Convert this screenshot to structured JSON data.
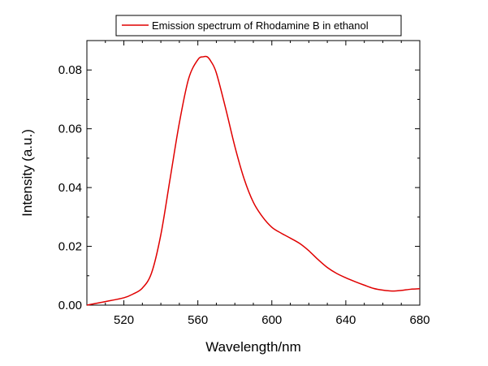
{
  "chart_data": {
    "type": "line",
    "xlabel": "Wavelength/nm",
    "ylabel": "Intensity (a.u.)",
    "xlim": [
      500,
      680
    ],
    "ylim": [
      0,
      0.09
    ],
    "x_ticks": [
      520,
      560,
      600,
      640,
      680
    ],
    "x_tick_labels": [
      "520",
      "560",
      "600",
      "640",
      "680"
    ],
    "y_ticks": [
      0,
      0.02,
      0.04,
      0.06,
      0.08
    ],
    "y_tick_labels": [
      "0.00",
      "0.02",
      "0.04",
      "0.06",
      "0.08"
    ],
    "grid": false,
    "legend_position": "top-center",
    "series": [
      {
        "name": "Emission spectrum of Rhodamine B in ethanol",
        "color": "#e00000",
        "x": [
          500,
          510,
          520,
          525,
          530,
          535,
          540,
          545,
          550,
          555,
          560,
          563,
          565,
          567,
          570,
          575,
          580,
          585,
          590,
          595,
          600,
          605,
          610,
          615,
          620,
          625,
          630,
          635,
          640,
          645,
          650,
          655,
          660,
          665,
          670,
          675,
          680
        ],
        "y": [
          0.0,
          0.0012,
          0.0025,
          0.0038,
          0.0058,
          0.011,
          0.024,
          0.043,
          0.062,
          0.077,
          0.0835,
          0.0845,
          0.0845,
          0.083,
          0.079,
          0.067,
          0.054,
          0.043,
          0.035,
          0.03,
          0.0265,
          0.0245,
          0.0228,
          0.021,
          0.0185,
          0.0155,
          0.0128,
          0.0108,
          0.0093,
          0.008,
          0.0068,
          0.0057,
          0.0051,
          0.0048,
          0.005,
          0.0054,
          0.0056
        ]
      }
    ]
  }
}
